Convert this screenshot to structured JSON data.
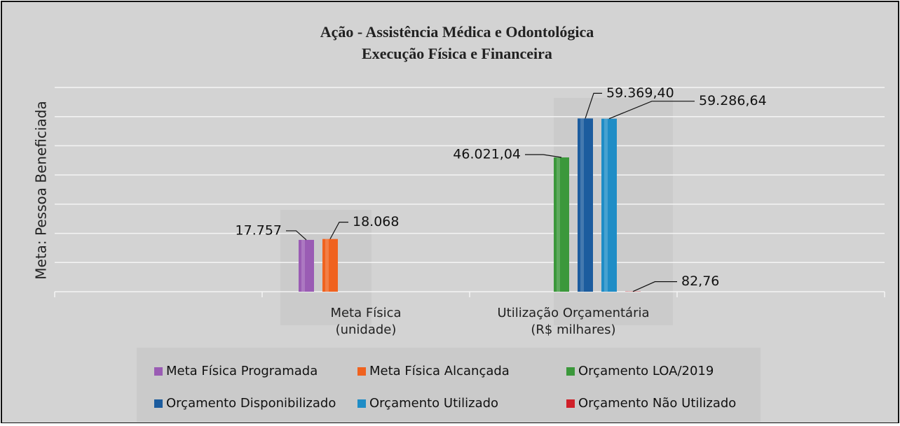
{
  "chart_data": {
    "type": "bar",
    "title": "Ação - Assistência Médica e Odontológica",
    "subtitle": "Execução Física e Financeira",
    "y_label": "Meta: Pessoa Beneficiada",
    "categories": [
      null,
      "Meta Física\n(unidade)",
      "Utilização Orçamentária\n(R$ milhares)",
      null
    ],
    "series": [
      {
        "name": "Meta Física Programada",
        "color": "#9a5cb4",
        "values": [
          null,
          17757,
          null,
          null
        ],
        "value_labels": [
          null,
          "17.757",
          null,
          null
        ]
      },
      {
        "name": "Meta Física Alcançada",
        "color": "#f0621f",
        "values": [
          null,
          18068,
          null,
          null
        ],
        "value_labels": [
          null,
          "18.068",
          null,
          null
        ]
      },
      {
        "name": "Orçamento LOA/2019",
        "color": "#3b983b",
        "values": [
          null,
          null,
          46021.04,
          null
        ],
        "value_labels": [
          null,
          null,
          "46.021,04",
          null
        ]
      },
      {
        "name": "Orçamento Disponibilizado",
        "color": "#1c5c9e",
        "values": [
          null,
          null,
          59369.4,
          null
        ],
        "value_labels": [
          null,
          null,
          "59.369,40",
          null
        ]
      },
      {
        "name": "Orçamento Utilizado",
        "color": "#1f8dc6",
        "values": [
          null,
          null,
          59286.64,
          null
        ],
        "value_labels": [
          null,
          null,
          "59.286,64",
          null
        ]
      },
      {
        "name": "Orçamento Não Utilizado",
        "color": "#d02029",
        "values": [
          null,
          null,
          82.76,
          null
        ],
        "value_labels": [
          null,
          null,
          "82,76",
          null
        ]
      }
    ],
    "ylim": [
      0,
      70000
    ],
    "yticks": [
      0,
      10000,
      20000,
      30000,
      40000,
      50000,
      60000,
      70000
    ],
    "grid": true
  }
}
